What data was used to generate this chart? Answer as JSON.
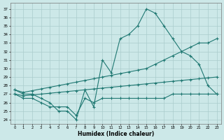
{
  "curve1_x": [
    0,
    1,
    2,
    3,
    4,
    5,
    6,
    7,
    8,
    9,
    10,
    11,
    12,
    13,
    14,
    15,
    16,
    17,
    18,
    19,
    20,
    21,
    22,
    23
  ],
  "curve1_y": [
    27.5,
    27.0,
    27.0,
    26.5,
    26.0,
    25.0,
    25.0,
    24.0,
    27.5,
    25.5,
    31.0,
    29.5,
    33.5,
    34.0,
    35.0,
    37.0,
    36.5,
    35.0,
    33.5,
    32.0,
    31.5,
    30.5,
    28.0,
    27.0
  ],
  "curve2_x": [
    0,
    1,
    2,
    3,
    4,
    5,
    6,
    7,
    8,
    9,
    10,
    11,
    12,
    13,
    14,
    15,
    16,
    17,
    18,
    19,
    20,
    21,
    22,
    23
  ],
  "curve2_y": [
    27.5,
    27.2,
    27.4,
    27.6,
    27.8,
    28.0,
    28.2,
    28.4,
    28.6,
    28.8,
    29.0,
    29.2,
    29.4,
    29.6,
    29.8,
    30.0,
    30.5,
    31.0,
    31.5,
    32.0,
    32.5,
    33.0,
    33.0,
    33.5
  ],
  "curve3_x": [
    0,
    1,
    2,
    3,
    4,
    5,
    6,
    7,
    8,
    9,
    10,
    11,
    12,
    13,
    14,
    15,
    16,
    17,
    18,
    19,
    20,
    21,
    22,
    23
  ],
  "curve3_y": [
    27.0,
    26.8,
    26.9,
    27.0,
    27.1,
    27.2,
    27.3,
    27.4,
    27.5,
    27.6,
    27.7,
    27.8,
    27.9,
    28.0,
    28.1,
    28.2,
    28.3,
    28.4,
    28.5,
    28.6,
    28.7,
    28.8,
    28.9,
    29.0
  ],
  "curve4_x": [
    0,
    1,
    2,
    3,
    4,
    5,
    6,
    7,
    8,
    9,
    10,
    11,
    12,
    13,
    14,
    15,
    16,
    17,
    18,
    19,
    20,
    21,
    22,
    23
  ],
  "curve4_y": [
    27.0,
    26.5,
    26.5,
    26.0,
    25.5,
    25.5,
    25.5,
    24.5,
    26.5,
    26.0,
    26.5,
    26.5,
    26.5,
    26.5,
    26.5,
    26.5,
    26.5,
    26.5,
    27.0,
    27.0,
    27.0,
    27.0,
    27.0,
    27.0
  ],
  "line_color": "#1f7872",
  "bg_color": "#cce8e8",
  "grid_color": "#aacccc",
  "xlabel": "Humidex (Indice chaleur)",
  "yticks": [
    24,
    25,
    26,
    27,
    28,
    29,
    30,
    31,
    32,
    33,
    34,
    35,
    36,
    37
  ],
  "xlim": [
    -0.5,
    23.5
  ],
  "ylim": [
    23.5,
    37.7
  ]
}
